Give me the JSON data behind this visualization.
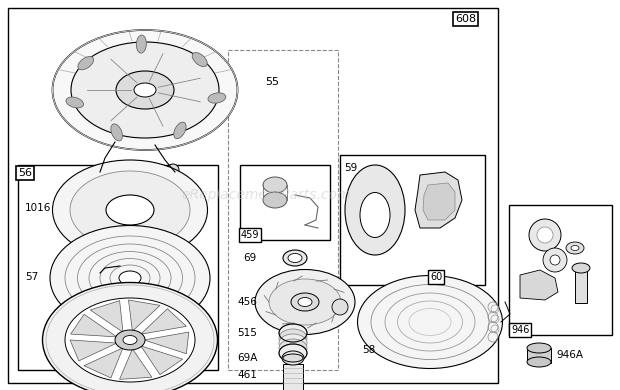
{
  "bg_color": "#ffffff",
  "watermark": "eReplacementParts.com",
  "fig_w": 6.2,
  "fig_h": 3.9,
  "dpi": 100
}
